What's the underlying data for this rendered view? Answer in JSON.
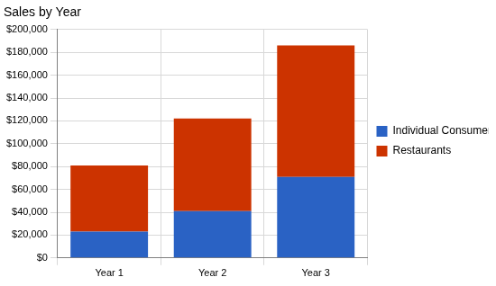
{
  "chart_data": {
    "type": "bar",
    "title": "Sales by Year",
    "categories": [
      "Year 1",
      "Year 2",
      "Year 3"
    ],
    "series": [
      {
        "name": "Individual Consumers",
        "color": "#2a62c4",
        "values": [
          23000,
          41000,
          71000
        ]
      },
      {
        "name": "Restaurants",
        "color": "#cc3300",
        "values": [
          58000,
          81000,
          115000
        ]
      }
    ],
    "stacked": true,
    "ylim": [
      0,
      200000
    ],
    "yticks": [
      {
        "value": 0,
        "label": "$0"
      },
      {
        "value": 20000,
        "label": "$20,000"
      },
      {
        "value": 40000,
        "label": "$40,000"
      },
      {
        "value": 60000,
        "label": "$60,000"
      },
      {
        "value": 80000,
        "label": "$80,000"
      },
      {
        "value": 100000,
        "label": "$100,000"
      },
      {
        "value": 120000,
        "label": "$120,000"
      },
      {
        "value": 140000,
        "label": "$140,000"
      },
      {
        "value": 160000,
        "label": "$160,000"
      },
      {
        "value": 180000,
        "label": "$180,000"
      },
      {
        "value": 200000,
        "label": "$200,000"
      }
    ],
    "grid": true,
    "legend": "right"
  }
}
